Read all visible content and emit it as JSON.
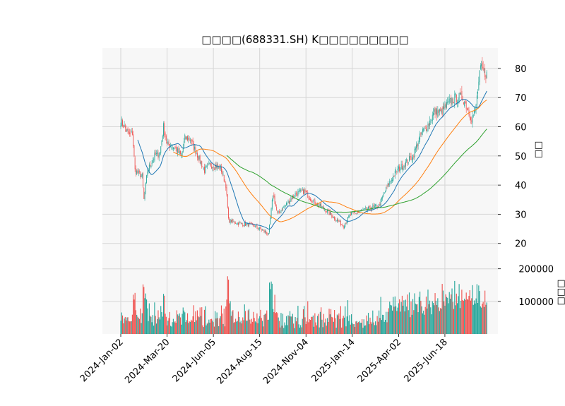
{
  "chart_data": {
    "type": "candlestick",
    "title": "□□□□(688331.SH) K□□□□□□□□□",
    "price_panel": {
      "ylabel": "□□",
      "yticks": [
        20,
        30,
        40,
        50,
        60,
        70,
        80
      ],
      "ylim": [
        18,
        87
      ]
    },
    "volume_panel": {
      "ylabel": "□□□",
      "yticks": [
        100000,
        200000
      ],
      "ylim": [
        0,
        260000
      ]
    },
    "x_ticks": [
      "2024-Jan-02",
      "2024-Mar-20",
      "2024-Jun-05",
      "2024-Aug-15",
      "2024-Nov-04",
      "2025-Jan-14",
      "2025-Apr-02",
      "2025-Jun-18"
    ],
    "x_tick_positions": [
      0,
      52,
      104,
      156,
      208,
      260,
      312,
      364
    ],
    "n_bars": 412,
    "close_anchors": [
      [
        0,
        62
      ],
      [
        10,
        57
      ],
      [
        13,
        58
      ],
      [
        16,
        45
      ],
      [
        24,
        43
      ],
      [
        26,
        35
      ],
      [
        30,
        45
      ],
      [
        38,
        50
      ],
      [
        44,
        51
      ],
      [
        48,
        60
      ],
      [
        52,
        54
      ],
      [
        60,
        53
      ],
      [
        68,
        50
      ],
      [
        72,
        56
      ],
      [
        78,
        56
      ],
      [
        82,
        53
      ],
      [
        88,
        49
      ],
      [
        94,
        45
      ],
      [
        100,
        47
      ],
      [
        112,
        46
      ],
      [
        118,
        40
      ],
      [
        121,
        28
      ],
      [
        130,
        27
      ],
      [
        150,
        26
      ],
      [
        162,
        24
      ],
      [
        166,
        23
      ],
      [
        171,
        37
      ],
      [
        176,
        30
      ],
      [
        196,
        37
      ],
      [
        206,
        38
      ],
      [
        214,
        35
      ],
      [
        228,
        32
      ],
      [
        250,
        26
      ],
      [
        258,
        30
      ],
      [
        270,
        31
      ],
      [
        290,
        33
      ],
      [
        300,
        40
      ],
      [
        310,
        45
      ],
      [
        318,
        47
      ],
      [
        328,
        50
      ],
      [
        338,
        58
      ],
      [
        344,
        60
      ],
      [
        352,
        65
      ],
      [
        360,
        65
      ],
      [
        368,
        68
      ],
      [
        376,
        70
      ],
      [
        384,
        70
      ],
      [
        394,
        63
      ],
      [
        398,
        65
      ],
      [
        404,
        80
      ],
      [
        410,
        78
      ]
    ],
    "colors": {
      "up": "#26a69a",
      "down": "#ef5350",
      "ma_short": "#1f77b4",
      "ma_mid": "#ff7f0e",
      "ma_long": "#2ca02c"
    },
    "ma_windows": [
      20,
      60,
      120
    ],
    "grid": true
  }
}
